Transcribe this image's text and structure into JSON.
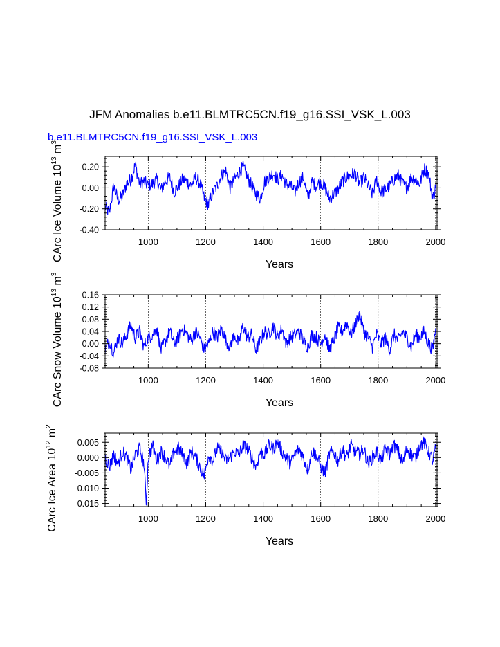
{
  "figure": {
    "title": "JFM Anomalies b.e11.BLMTRC5CN.f19_g16.SSI_VSK_L.003",
    "subtitle": "b.e11.BLMTRC5CN.f19_g16.SSI_VSK_L.003",
    "line_color": "#0000ff"
  },
  "chart_data": [
    {
      "type": "line",
      "title": "",
      "xlabel": "Years",
      "ylabel_text": "CArc Ice Volume 10",
      "ylabel_exp1": "13",
      "ylabel_unit": " m",
      "ylabel_exp2": "3",
      "xlim": [
        850,
        2005
      ],
      "ylim": [
        -0.4,
        0.3
      ],
      "xticks": [
        1000,
        1200,
        1400,
        1600,
        1800,
        2000
      ],
      "yticks": [
        -0.4,
        -0.2,
        0.0,
        0.2
      ],
      "ytick_labels": [
        "-0.40",
        "-0.20",
        "0.00",
        "0.20"
      ],
      "series": [
        {
          "name": "ice volume",
          "x": [
            850,
            865,
            880,
            895,
            910,
            925,
            940,
            955,
            970,
            985,
            1000,
            1015,
            1030,
            1045,
            1060,
            1075,
            1090,
            1105,
            1120,
            1135,
            1150,
            1165,
            1180,
            1195,
            1210,
            1225,
            1240,
            1255,
            1270,
            1285,
            1300,
            1315,
            1330,
            1345,
            1360,
            1375,
            1390,
            1405,
            1420,
            1435,
            1450,
            1465,
            1480,
            1495,
            1510,
            1525,
            1540,
            1555,
            1570,
            1585,
            1600,
            1615,
            1630,
            1645,
            1660,
            1675,
            1690,
            1705,
            1720,
            1735,
            1750,
            1765,
            1780,
            1795,
            1810,
            1825,
            1840,
            1855,
            1870,
            1885,
            1900,
            1915,
            1930,
            1945,
            1960,
            1975,
            1990,
            2000
          ],
          "values": [
            -0.18,
            -0.24,
            0.02,
            -0.12,
            -0.08,
            0.04,
            0.08,
            0.22,
            0.04,
            0.06,
            0.02,
            0.04,
            0.08,
            -0.02,
            0.06,
            0.1,
            -0.04,
            0.02,
            0.08,
            0.06,
            0.02,
            0.1,
            0.04,
            -0.1,
            -0.16,
            -0.04,
            0.02,
            0.12,
            0.16,
            0.0,
            0.08,
            0.14,
            0.2,
            0.1,
            0.02,
            -0.06,
            -0.1,
            0.06,
            0.1,
            0.14,
            0.08,
            0.12,
            0.04,
            0.02,
            -0.04,
            0.06,
            0.1,
            -0.1,
            0.06,
            0.02,
            0.06,
            0.0,
            -0.1,
            -0.06,
            -0.02,
            0.06,
            0.1,
            0.12,
            0.14,
            0.04,
            0.1,
            0.02,
            -0.06,
            0.08,
            -0.04,
            -0.02,
            0.02,
            0.08,
            0.12,
            0.04,
            0.0,
            0.1,
            0.08,
            0.04,
            0.18,
            0.14,
            -0.1,
            0.0
          ]
        }
      ]
    },
    {
      "type": "line",
      "title": "",
      "xlabel": "Years",
      "ylabel_text": "CArc Snow Volume 10",
      "ylabel_exp1": "13",
      "ylabel_unit": " m",
      "ylabel_exp2": "3",
      "xlim": [
        850,
        2005
      ],
      "ylim": [
        -0.08,
        0.16
      ],
      "xticks": [
        1000,
        1200,
        1400,
        1600,
        1800,
        2000
      ],
      "yticks": [
        -0.08,
        -0.04,
        0.0,
        0.04,
        0.08,
        0.12,
        0.16
      ],
      "ytick_labels": [
        "-0.08",
        "-0.04",
        "0.00",
        "0.04",
        "0.08",
        "0.12",
        "0.16"
      ],
      "series": [
        {
          "name": "snow volume",
          "x": [
            850,
            865,
            880,
            895,
            910,
            925,
            940,
            955,
            970,
            985,
            1000,
            1015,
            1030,
            1045,
            1060,
            1075,
            1090,
            1105,
            1120,
            1135,
            1150,
            1165,
            1180,
            1195,
            1210,
            1225,
            1240,
            1255,
            1270,
            1285,
            1300,
            1315,
            1330,
            1345,
            1360,
            1375,
            1390,
            1405,
            1420,
            1435,
            1450,
            1465,
            1480,
            1495,
            1510,
            1525,
            1540,
            1555,
            1570,
            1585,
            1600,
            1615,
            1630,
            1645,
            1660,
            1675,
            1690,
            1705,
            1720,
            1735,
            1750,
            1765,
            1780,
            1795,
            1810,
            1825,
            1840,
            1855,
            1870,
            1885,
            1900,
            1915,
            1930,
            1945,
            1960,
            1975,
            1990,
            2000
          ],
          "values": [
            -0.02,
            0.01,
            -0.03,
            0.02,
            0.0,
            0.03,
            0.06,
            0.02,
            0.04,
            -0.01,
            0.02,
            0.03,
            0.05,
            -0.02,
            0.01,
            0.04,
            0.0,
            0.02,
            0.05,
            0.03,
            0.01,
            0.04,
            0.02,
            -0.02,
            0.0,
            0.04,
            0.02,
            0.05,
            0.01,
            -0.01,
            0.03,
            0.0,
            0.06,
            0.02,
            0.03,
            -0.02,
            0.01,
            0.04,
            0.03,
            0.06,
            0.02,
            0.05,
            0.0,
            0.02,
            0.03,
            0.04,
            0.01,
            -0.01,
            0.03,
            0.02,
            0.0,
            0.03,
            -0.02,
            0.01,
            0.05,
            0.04,
            0.07,
            0.03,
            0.06,
            0.1,
            0.04,
            0.02,
            -0.01,
            0.03,
            0.0,
            0.02,
            -0.02,
            0.03,
            0.01,
            0.04,
            0.02,
            -0.01,
            0.03,
            0.02,
            0.04,
            0.0,
            -0.02,
            0.05
          ]
        }
      ]
    },
    {
      "type": "line",
      "title": "",
      "xlabel": "Years",
      "ylabel_text": "CArc Ice Area 10",
      "ylabel_exp1": "12",
      "ylabel_unit": " m",
      "ylabel_exp2": "2",
      "xlim": [
        850,
        2005
      ],
      "ylim": [
        -0.016,
        0.008
      ],
      "xticks": [
        1000,
        1200,
        1400,
        1600,
        1800,
        2000
      ],
      "yticks": [
        -0.015,
        -0.01,
        -0.005,
        0.0,
        0.005
      ],
      "ytick_labels": [
        "-0.015",
        "-0.010",
        "-0.005",
        "0.000",
        "0.005"
      ],
      "series": [
        {
          "name": "ice area",
          "x": [
            850,
            865,
            880,
            895,
            910,
            925,
            940,
            955,
            970,
            985,
            993,
            1000,
            1015,
            1030,
            1045,
            1060,
            1075,
            1090,
            1105,
            1120,
            1135,
            1150,
            1165,
            1180,
            1195,
            1210,
            1225,
            1240,
            1255,
            1270,
            1285,
            1300,
            1315,
            1330,
            1345,
            1360,
            1375,
            1390,
            1405,
            1420,
            1435,
            1450,
            1465,
            1480,
            1495,
            1510,
            1525,
            1540,
            1555,
            1570,
            1585,
            1600,
            1615,
            1630,
            1645,
            1660,
            1675,
            1690,
            1705,
            1720,
            1735,
            1750,
            1765,
            1780,
            1795,
            1810,
            1825,
            1840,
            1855,
            1870,
            1885,
            1900,
            1915,
            1930,
            1945,
            1960,
            1975,
            1990,
            2000
          ],
          "values": [
            0.0,
            -0.003,
            0.001,
            -0.002,
            0.002,
            0.0,
            -0.004,
            0.001,
            0.003,
            -0.002,
            -0.015,
            0.0,
            0.004,
            -0.001,
            0.002,
            0.0,
            -0.003,
            0.002,
            0.003,
            0.001,
            -0.002,
            0.002,
            0.0,
            -0.003,
            -0.006,
            0.001,
            -0.001,
            0.003,
            0.002,
            -0.001,
            0.0,
            0.002,
            0.001,
            0.004,
            0.003,
            0.0,
            -0.003,
            0.002,
            0.001,
            0.004,
            0.003,
            0.005,
            0.002,
            0.0,
            -0.002,
            0.001,
            0.003,
            0.0,
            -0.004,
            0.002,
            0.001,
            -0.003,
            -0.005,
            0.001,
            0.002,
            -0.001,
            0.003,
            0.0,
            0.004,
            0.002,
            0.001,
            0.003,
            -0.002,
            0.0,
            0.002,
            -0.001,
            0.003,
            0.001,
            0.004,
            0.002,
            -0.002,
            0.003,
            0.001,
            0.0,
            0.004,
            0.005,
            0.002,
            -0.001,
            0.003
          ]
        }
      ]
    }
  ]
}
